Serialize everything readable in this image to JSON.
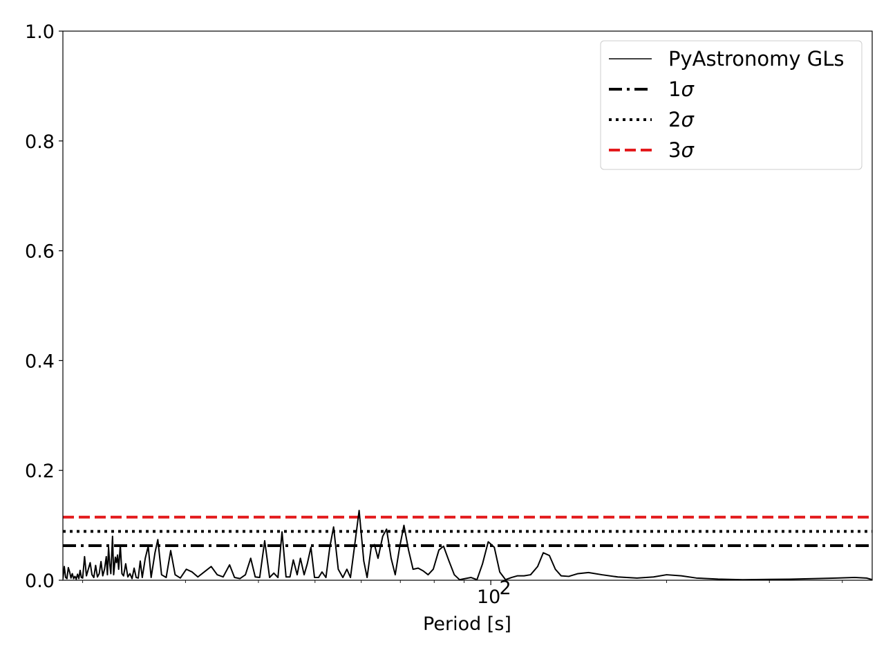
{
  "chart_data": {
    "type": "line",
    "title": "",
    "xlabel": "Period [s]",
    "ylabel": "",
    "xscale": "log",
    "xlim": [
      18.5,
      450
    ],
    "ylim": [
      0,
      1.0
    ],
    "x_ticks": [
      {
        "value": 100,
        "base": "10",
        "exp": "2"
      }
    ],
    "y_ticks": [
      "0.0",
      "0.2",
      "0.4",
      "0.6",
      "0.8",
      "1.0"
    ],
    "legend_position": "top-right",
    "grid": false,
    "series": [
      {
        "name": "PyAstronomy GLs",
        "color": "#000000",
        "style": "solid",
        "points": [
          [
            18.5,
            0.002
          ],
          [
            18.6,
            0.025
          ],
          [
            18.7,
            0.005
          ],
          [
            18.8,
            0.003
          ],
          [
            18.9,
            0.023
          ],
          [
            19.0,
            0.015
          ],
          [
            19.1,
            0.004
          ],
          [
            19.2,
            0.012
          ],
          [
            19.3,
            0.003
          ],
          [
            19.4,
            0.007
          ],
          [
            19.5,
            0.002
          ],
          [
            19.6,
            0.011
          ],
          [
            19.7,
            0.003
          ],
          [
            19.8,
            0.018
          ],
          [
            19.9,
            0.005
          ],
          [
            20.0,
            0.004
          ],
          [
            20.15,
            0.043
          ],
          [
            20.3,
            0.008
          ],
          [
            20.45,
            0.02
          ],
          [
            20.6,
            0.032
          ],
          [
            20.75,
            0.01
          ],
          [
            20.9,
            0.005
          ],
          [
            21.05,
            0.027
          ],
          [
            21.2,
            0.006
          ],
          [
            21.35,
            0.012
          ],
          [
            21.5,
            0.034
          ],
          [
            21.65,
            0.008
          ],
          [
            21.8,
            0.02
          ],
          [
            21.95,
            0.043
          ],
          [
            22.05,
            0.01
          ],
          [
            22.15,
            0.06
          ],
          [
            22.25,
            0.03
          ],
          [
            22.35,
            0.012
          ],
          [
            22.5,
            0.08
          ],
          [
            22.6,
            0.01
          ],
          [
            22.75,
            0.042
          ],
          [
            22.85,
            0.032
          ],
          [
            22.95,
            0.046
          ],
          [
            23.05,
            0.02
          ],
          [
            23.2,
            0.064
          ],
          [
            23.35,
            0.012
          ],
          [
            23.5,
            0.008
          ],
          [
            23.7,
            0.03
          ],
          [
            23.9,
            0.006
          ],
          [
            24.1,
            0.012
          ],
          [
            24.3,
            0.003
          ],
          [
            24.5,
            0.022
          ],
          [
            24.7,
            0.005
          ],
          [
            24.9,
            0.004
          ],
          [
            25.1,
            0.035
          ],
          [
            25.3,
            0.005
          ],
          [
            25.6,
            0.04
          ],
          [
            25.9,
            0.062
          ],
          [
            26.2,
            0.005
          ],
          [
            26.6,
            0.05
          ],
          [
            26.9,
            0.074
          ],
          [
            27.3,
            0.01
          ],
          [
            27.8,
            0.005
          ],
          [
            28.3,
            0.054
          ],
          [
            28.8,
            0.01
          ],
          [
            29.4,
            0.004
          ],
          [
            30.1,
            0.02
          ],
          [
            30.8,
            0.015
          ],
          [
            31.5,
            0.006
          ],
          [
            32.3,
            0.015
          ],
          [
            33.2,
            0.025
          ],
          [
            34.0,
            0.01
          ],
          [
            34.8,
            0.006
          ],
          [
            35.7,
            0.028
          ],
          [
            36.4,
            0.005
          ],
          [
            37.2,
            0.003
          ],
          [
            38.0,
            0.01
          ],
          [
            38.8,
            0.04
          ],
          [
            39.5,
            0.006
          ],
          [
            40.2,
            0.005
          ],
          [
            41.0,
            0.072
          ],
          [
            41.8,
            0.005
          ],
          [
            42.5,
            0.013
          ],
          [
            43.2,
            0.005
          ],
          [
            43.9,
            0.088
          ],
          [
            44.6,
            0.006
          ],
          [
            45.3,
            0.006
          ],
          [
            45.9,
            0.037
          ],
          [
            46.6,
            0.01
          ],
          [
            47.2,
            0.04
          ],
          [
            47.9,
            0.01
          ],
          [
            48.5,
            0.03
          ],
          [
            49.2,
            0.06
          ],
          [
            49.9,
            0.005
          ],
          [
            50.7,
            0.005
          ],
          [
            51.4,
            0.015
          ],
          [
            52.2,
            0.005
          ],
          [
            53.0,
            0.06
          ],
          [
            53.8,
            0.097
          ],
          [
            54.8,
            0.02
          ],
          [
            55.8,
            0.005
          ],
          [
            56.7,
            0.02
          ],
          [
            57.5,
            0.005
          ],
          [
            58.4,
            0.06
          ],
          [
            59.5,
            0.127
          ],
          [
            60.6,
            0.035
          ],
          [
            61.4,
            0.005
          ],
          [
            62.4,
            0.06
          ],
          [
            63.2,
            0.065
          ],
          [
            64.1,
            0.04
          ],
          [
            65.3,
            0.08
          ],
          [
            66.3,
            0.093
          ],
          [
            67.5,
            0.04
          ],
          [
            68.6,
            0.01
          ],
          [
            69.8,
            0.06
          ],
          [
            71.0,
            0.1
          ],
          [
            72.3,
            0.055
          ],
          [
            73.6,
            0.02
          ],
          [
            75.1,
            0.022
          ],
          [
            76.6,
            0.017
          ],
          [
            78.1,
            0.01
          ],
          [
            79.7,
            0.02
          ],
          [
            81.5,
            0.055
          ],
          [
            83.0,
            0.062
          ],
          [
            84.8,
            0.035
          ],
          [
            86.6,
            0.01
          ],
          [
            88.4,
            0.001
          ],
          [
            90.4,
            0.003
          ],
          [
            92.5,
            0.005
          ],
          [
            94.7,
            0.001
          ],
          [
            96.8,
            0.03
          ],
          [
            99.0,
            0.07
          ],
          [
            101.4,
            0.06
          ],
          [
            103.6,
            0.015
          ],
          [
            106.0,
            0.001
          ],
          [
            108.5,
            0.005
          ],
          [
            111.0,
            0.008
          ],
          [
            114.0,
            0.008
          ],
          [
            117.0,
            0.01
          ],
          [
            120.3,
            0.025
          ],
          [
            123.0,
            0.05
          ],
          [
            126.0,
            0.045
          ],
          [
            129.0,
            0.02
          ],
          [
            132.0,
            0.008
          ],
          [
            136.0,
            0.007
          ],
          [
            141.0,
            0.012
          ],
          [
            147.0,
            0.014
          ],
          [
            155.0,
            0.01
          ],
          [
            165.0,
            0.006
          ],
          [
            178.0,
            0.004
          ],
          [
            190.0,
            0.006
          ],
          [
            200.0,
            0.01
          ],
          [
            212.0,
            0.008
          ],
          [
            225.0,
            0.004
          ],
          [
            245.0,
            0.002
          ],
          [
            270.0,
            0.001
          ],
          [
            300.0,
            0.0015
          ],
          [
            330.0,
            0.002
          ],
          [
            360.0,
            0.003
          ],
          [
            390.0,
            0.004
          ],
          [
            420.0,
            0.005
          ],
          [
            440.0,
            0.004
          ],
          [
            450.0,
            0.001
          ]
        ]
      }
    ],
    "hlines": [
      {
        "name": "1σ",
        "label_main": "1",
        "label_sym": "σ",
        "y": 0.063,
        "color": "#000000",
        "style": "dashdot"
      },
      {
        "name": "2σ",
        "label_main": "2",
        "label_sym": "σ",
        "y": 0.089,
        "color": "#000000",
        "style": "dotted"
      },
      {
        "name": "3σ",
        "label_main": "3",
        "label_sym": "σ",
        "y": 0.115,
        "color": "#e31a1c",
        "style": "dashed"
      }
    ]
  }
}
